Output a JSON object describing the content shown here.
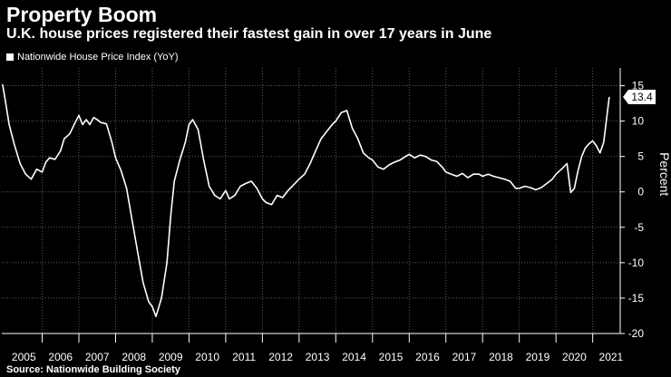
{
  "chart_data": {
    "type": "line",
    "title": "Property Boom",
    "subtitle": "U.K. house prices registered their fastest gain in over 17 years in June",
    "legend": [
      "Nationwide House Price Index (YoY)"
    ],
    "ylabel": "Percent",
    "xlabel": "",
    "ylim": [
      -20,
      17.5
    ],
    "xlim": [
      2004.9,
      2021.75
    ],
    "yticks": [
      15,
      10,
      5,
      0,
      -5,
      -10,
      -15,
      -20
    ],
    "xtick_labels": [
      "2005",
      "2006",
      "2007",
      "2008",
      "2009",
      "2010",
      "2011",
      "2012",
      "2013",
      "2014",
      "2015",
      "2016",
      "2017",
      "2018",
      "2019",
      "2020",
      "2021"
    ],
    "last_value_label": "13.4",
    "series": [
      {
        "name": "Nationwide House Price Index (YoY)",
        "x": [
          2004.92,
          2005.0,
          2005.1,
          2005.25,
          2005.4,
          2005.55,
          2005.7,
          2005.85,
          2006.0,
          2006.1,
          2006.2,
          2006.35,
          2006.5,
          2006.6,
          2006.75,
          2006.9,
          2007.0,
          2007.1,
          2007.2,
          2007.3,
          2007.4,
          2007.5,
          2007.6,
          2007.75,
          2007.9,
          2008.0,
          2008.15,
          2008.3,
          2008.45,
          2008.6,
          2008.75,
          2008.9,
          2009.0,
          2009.1,
          2009.25,
          2009.4,
          2009.5,
          2009.6,
          2009.75,
          2009.9,
          2010.0,
          2010.1,
          2010.25,
          2010.4,
          2010.55,
          2010.7,
          2010.85,
          2011.0,
          2011.1,
          2011.25,
          2011.4,
          2011.55,
          2011.7,
          2011.85,
          2012.0,
          2012.1,
          2012.25,
          2012.4,
          2012.55,
          2012.7,
          2012.85,
          2013.0,
          2013.15,
          2013.3,
          2013.45,
          2013.6,
          2013.75,
          2013.9,
          2014.0,
          2014.15,
          2014.3,
          2014.45,
          2014.6,
          2014.75,
          2014.9,
          2015.0,
          2015.15,
          2015.3,
          2015.45,
          2015.6,
          2015.75,
          2015.9,
          2016.0,
          2016.15,
          2016.3,
          2016.45,
          2016.6,
          2016.75,
          2016.9,
          2017.0,
          2017.15,
          2017.3,
          2017.45,
          2017.6,
          2017.75,
          2017.9,
          2018.0,
          2018.15,
          2018.3,
          2018.45,
          2018.6,
          2018.75,
          2018.9,
          2019.0,
          2019.15,
          2019.3,
          2019.45,
          2019.6,
          2019.75,
          2019.9,
          2020.0,
          2020.15,
          2020.3,
          2020.4,
          2020.5,
          2020.6,
          2020.7,
          2020.8,
          2020.9,
          2021.0,
          2021.1,
          2021.2,
          2021.3,
          2021.45
        ],
        "values": [
          15.2,
          12.8,
          9.5,
          6.5,
          4.0,
          2.5,
          1.8,
          3.2,
          2.8,
          4.2,
          4.8,
          4.6,
          5.8,
          7.5,
          8.2,
          9.8,
          10.8,
          9.5,
          10.2,
          9.5,
          10.5,
          10.2,
          9.8,
          9.6,
          7.0,
          4.8,
          3.0,
          0.5,
          -4.0,
          -8.5,
          -12.8,
          -15.5,
          -16.2,
          -17.6,
          -15.0,
          -10.0,
          -3.5,
          1.5,
          4.5,
          7.0,
          9.5,
          10.2,
          8.8,
          4.5,
          0.8,
          -0.5,
          -1.0,
          0.2,
          -1.0,
          -0.5,
          0.8,
          1.2,
          1.5,
          0.5,
          -1.0,
          -1.5,
          -1.8,
          -0.5,
          -0.8,
          0.2,
          1.0,
          1.8,
          2.5,
          4.0,
          5.8,
          7.5,
          8.5,
          9.5,
          10.0,
          11.2,
          11.5,
          9.0,
          7.5,
          5.5,
          4.8,
          4.5,
          3.5,
          3.2,
          3.8,
          4.2,
          4.5,
          5.0,
          5.3,
          4.8,
          5.2,
          5.0,
          4.5,
          4.3,
          3.5,
          2.8,
          2.5,
          2.2,
          2.6,
          2.0,
          2.5,
          2.5,
          2.2,
          2.5,
          2.2,
          2.0,
          1.8,
          1.5,
          0.5,
          0.5,
          0.8,
          0.6,
          0.3,
          0.6,
          1.2,
          1.8,
          2.5,
          3.2,
          4.0,
          -0.1,
          0.5,
          3.0,
          5.0,
          6.2,
          6.8,
          7.2,
          6.5,
          5.5,
          7.0,
          13.4
        ]
      }
    ]
  },
  "footer": {
    "source": "Source: Nationwide Building Society"
  }
}
